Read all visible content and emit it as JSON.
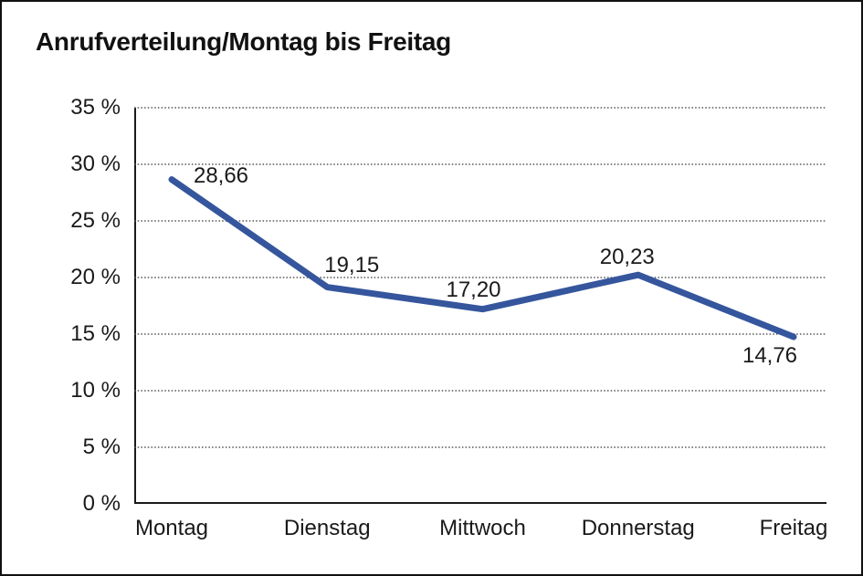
{
  "chart_data": {
    "type": "line",
    "title": "Anrufverteilung/Montag bis Freitag",
    "categories": [
      "Montag",
      "Dienstag",
      "Mittwoch",
      "Donnerstag",
      "Freitag"
    ],
    "values": [
      28.66,
      19.15,
      17.2,
      20.23,
      14.76
    ],
    "value_labels": [
      "28,66",
      "19,15",
      "17,20",
      "20,23",
      "14,76"
    ],
    "y_tick_values": [
      35,
      30,
      25,
      20,
      15,
      10,
      5,
      0
    ],
    "y_tick_labels": [
      "35 %",
      "30 %",
      "25 %",
      "20 %",
      "15 %",
      "10 %",
      "5 %",
      "0 %"
    ],
    "ylim": [
      0,
      35
    ],
    "xlabel": "",
    "ylabel": "",
    "grid": "horizontal-dotted",
    "legend": "none",
    "line_color": "#35569D",
    "axis_color": "#1a1a1a",
    "gridline_color": "#555555",
    "text_color": "#1a1a1a",
    "frame_border_color": "#111111",
    "background_color": "#ffffff"
  }
}
